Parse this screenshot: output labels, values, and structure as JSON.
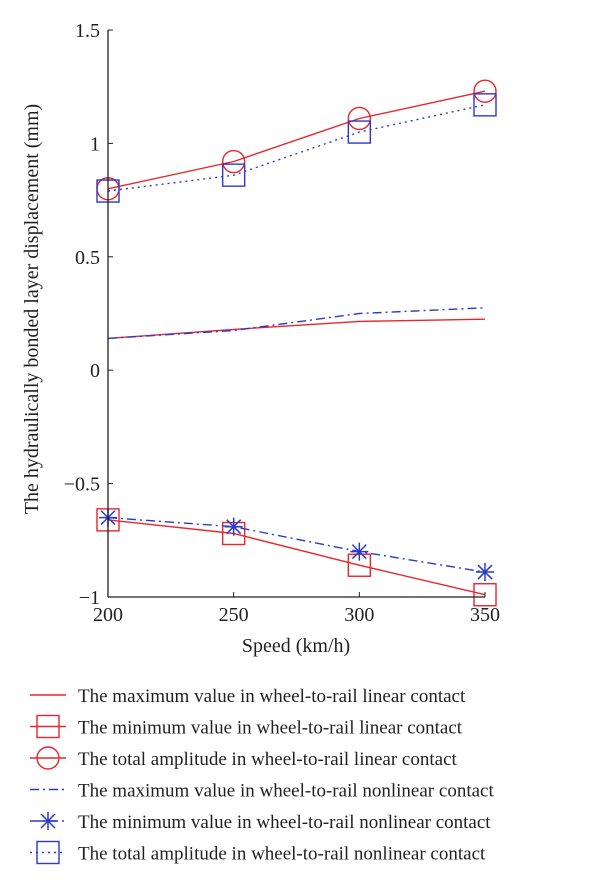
{
  "chart_data": {
    "type": "line",
    "title": "",
    "xlabel": "Speed (km/h)",
    "ylabel": "The hydraulically bonded layer displacement (mm)",
    "x": [
      200,
      250,
      300,
      350
    ],
    "xlim": [
      200,
      350
    ],
    "ylim": [
      -1,
      1.5
    ],
    "xticks": [
      "200",
      "250",
      "300",
      "350"
    ],
    "yticks": [
      "1.5",
      "1",
      "0.5",
      "0",
      "−0.5",
      "−1"
    ],
    "ytick_values": [
      1.5,
      1,
      0.5,
      0,
      -0.5,
      -1
    ],
    "grid": false,
    "legend_position": "bottom",
    "series": [
      {
        "name": "The maximum value in wheel-to-rail linear contact",
        "values": [
          0.14,
          0.18,
          0.215,
          0.225
        ],
        "color": "#e8262b",
        "line": "solid",
        "marker": "none"
      },
      {
        "name": "The minimum value in wheel-to-rail linear contact",
        "values": [
          -0.66,
          -0.72,
          -0.86,
          -0.99
        ],
        "color": "#e8262b",
        "line": "solid",
        "marker": "square"
      },
      {
        "name": "The total amplitude in wheel-to-rail linear contact",
        "values": [
          0.8,
          0.92,
          1.11,
          1.23
        ],
        "color": "#e8262b",
        "line": "solid",
        "marker": "circle"
      },
      {
        "name": "The maximum value in wheel-to-rail nonlinear contact",
        "values": [
          0.14,
          0.175,
          0.25,
          0.275
        ],
        "color": "#2b3acb",
        "line": "dashdot",
        "marker": "none"
      },
      {
        "name": "The minimum value in wheel-to-rail nonlinear contact",
        "values": [
          -0.65,
          -0.69,
          -0.8,
          -0.89
        ],
        "color": "#2b3acb",
        "line": "dashdot",
        "marker": "star"
      },
      {
        "name": "The total amplitude in wheel-to-rail nonlinear contact",
        "values": [
          0.79,
          0.86,
          1.05,
          1.17
        ],
        "color": "#2b3acb",
        "line": "dotted",
        "marker": "square"
      }
    ]
  }
}
